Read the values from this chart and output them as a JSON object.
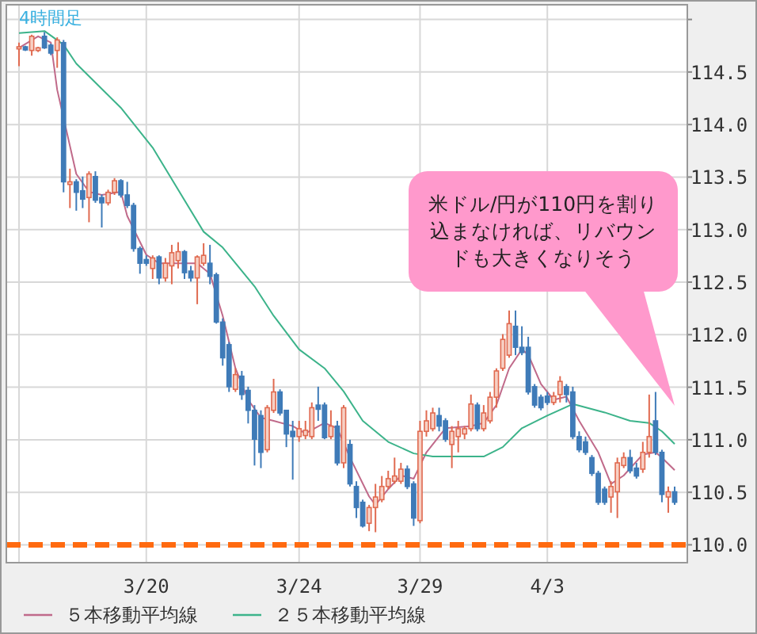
{
  "chart_data": {
    "type": "candlestick",
    "title": "4時間足",
    "annotations": [
      "米ドル/円が110円を割り込まなければ、リバウンドも大きくなりそう"
    ],
    "categories": [
      null,
      null,
      null,
      null,
      null,
      null,
      null,
      null,
      null,
      null,
      null,
      null,
      null,
      null,
      null,
      null,
      null,
      null,
      null,
      null,
      "3/20",
      null,
      null,
      null,
      null,
      null,
      null,
      null,
      null,
      null,
      null,
      null,
      null,
      null,
      null,
      null,
      null,
      null,
      null,
      null,
      null,
      null,
      null,
      null,
      "3/24",
      null,
      null,
      null,
      null,
      null,
      null,
      null,
      null,
      null,
      null,
      null,
      null,
      null,
      null,
      null,
      null,
      null,
      null,
      "3/29",
      null,
      null,
      null,
      null,
      null,
      null,
      null,
      null,
      null,
      null,
      null,
      null,
      null,
      null,
      null,
      null,
      null,
      null,
      null,
      "4/3",
      null,
      null,
      null,
      null,
      null,
      null,
      null,
      null,
      null,
      null,
      null,
      null,
      null,
      null,
      null,
      null,
      null,
      null,
      null,
      null
    ],
    "ohlc": [
      [
        114.72,
        114.78,
        114.555,
        114.74
      ],
      [
        114.74,
        114.75,
        114.7,
        114.71
      ],
      [
        114.705,
        114.855,
        114.655,
        114.84
      ],
      [
        114.705,
        114.74,
        114.69,
        114.73
      ],
      [
        114.84,
        114.88,
        114.72,
        114.73
      ],
      [
        114.755,
        114.77,
        114.66,
        114.68
      ],
      [
        114.705,
        114.83,
        114.54,
        114.805
      ],
      [
        114.78,
        114.805,
        113.355,
        113.455
      ],
      [
        113.43,
        113.58,
        113.205,
        113.455
      ],
      [
        113.455,
        113.48,
        113.18,
        113.355
      ],
      [
        113.37,
        113.505,
        113.205,
        113.29
      ],
      [
        113.305,
        113.555,
        113.07,
        113.53
      ],
      [
        113.505,
        113.555,
        113.255,
        113.28
      ],
      [
        113.305,
        113.335,
        113.02,
        113.255
      ],
      [
        113.255,
        113.38,
        113.23,
        113.355
      ],
      [
        113.355,
        113.49,
        113.33,
        113.465
      ],
      [
        113.465,
        113.48,
        113.305,
        113.33
      ],
      [
        113.33,
        113.455,
        113.205,
        113.23
      ],
      [
        113.23,
        113.255,
        112.79,
        112.82
      ],
      [
        112.82,
        112.84,
        112.58,
        112.68
      ],
      [
        112.715,
        112.755,
        112.655,
        112.68
      ],
      [
        112.63,
        112.755,
        112.53,
        112.73
      ],
      [
        112.74,
        112.755,
        112.48,
        112.54
      ],
      [
        112.54,
        112.73,
        112.505,
        112.68
      ],
      [
        112.655,
        112.855,
        112.48,
        112.78
      ],
      [
        112.705,
        112.88,
        112.63,
        112.79
      ],
      [
        112.79,
        112.805,
        112.53,
        112.59
      ],
      [
        112.605,
        112.655,
        112.505,
        112.54
      ],
      [
        112.54,
        112.755,
        112.29,
        112.74
      ],
      [
        112.68,
        112.87,
        112.655,
        112.755
      ],
      [
        112.68,
        112.855,
        112.48,
        112.555
      ],
      [
        112.57,
        112.59,
        112.105,
        112.12
      ],
      [
        112.12,
        112.155,
        111.705,
        111.78
      ],
      [
        111.905,
        111.93,
        111.455,
        111.505
      ],
      [
        111.48,
        111.68,
        111.455,
        111.62
      ],
      [
        111.605,
        111.655,
        111.38,
        111.43
      ],
      [
        111.47,
        111.505,
        111.155,
        111.28
      ],
      [
        111.28,
        111.33,
        110.755,
        111.005
      ],
      [
        111.23,
        111.28,
        110.73,
        110.88
      ],
      [
        110.905,
        111.33,
        110.88,
        111.305
      ],
      [
        111.28,
        111.58,
        111.255,
        111.455
      ],
      [
        111.455,
        111.48,
        111.23,
        111.255
      ],
      [
        111.28,
        111.28,
        110.93,
        111.055
      ],
      [
        111.08,
        111.18,
        110.62,
        111.03
      ],
      [
        111.03,
        111.18,
        110.98,
        111.105
      ],
      [
        111.04,
        111.18,
        111.005,
        111.09
      ],
      [
        111.03,
        111.355,
        111.005,
        111.305
      ],
      [
        111.33,
        111.505,
        111.18,
        111.29
      ],
      [
        111.33,
        111.355,
        111.005,
        111.02
      ],
      [
        111.03,
        111.28,
        111.005,
        111.13
      ],
      [
        111.13,
        111.18,
        110.755,
        110.78
      ],
      [
        110.78,
        111.33,
        110.73,
        111.305
      ],
      [
        110.955,
        111.0,
        110.555,
        110.58
      ],
      [
        110.555,
        110.605,
        110.255,
        110.355
      ],
      [
        110.405,
        110.43,
        110.165,
        110.18
      ],
      [
        110.205,
        110.38,
        110.13,
        110.355
      ],
      [
        110.355,
        110.58,
        110.12,
        110.455
      ],
      [
        110.43,
        110.655,
        110.405,
        110.555
      ],
      [
        110.555,
        110.705,
        110.53,
        110.63
      ],
      [
        110.605,
        110.83,
        110.58,
        110.655
      ],
      [
        110.605,
        110.78,
        110.58,
        110.72
      ],
      [
        110.72,
        110.755,
        110.53,
        110.555
      ],
      [
        110.58,
        110.605,
        110.18,
        110.255
      ],
      [
        110.23,
        111.18,
        110.205,
        111.08
      ],
      [
        111.08,
        111.28,
        111.03,
        111.18
      ],
      [
        111.105,
        111.305,
        111.08,
        111.255
      ],
      [
        111.23,
        111.305,
        111.08,
        111.13
      ],
      [
        111.18,
        111.205,
        110.98,
        111.005
      ],
      [
        110.955,
        111.13,
        110.73,
        111.08
      ],
      [
        111.03,
        111.18,
        110.88,
        111.105
      ],
      [
        111.055,
        111.13,
        111.005,
        111.105
      ],
      [
        111.105,
        111.43,
        111.08,
        111.34
      ],
      [
        111.33,
        111.355,
        111.08,
        111.105
      ],
      [
        111.105,
        111.33,
        111.08,
        111.255
      ],
      [
        111.18,
        111.455,
        111.155,
        111.405
      ],
      [
        111.405,
        111.68,
        111.305,
        111.655
      ],
      [
        111.68,
        112.005,
        111.655,
        111.955
      ],
      [
        111.805,
        112.23,
        111.78,
        112.105
      ],
      [
        112.08,
        112.23,
        111.805,
        111.88
      ],
      [
        111.88,
        112.08,
        111.805,
        111.83
      ],
      [
        111.88,
        111.98,
        111.43,
        111.455
      ],
      [
        111.505,
        111.53,
        111.305,
        111.33
      ],
      [
        111.405,
        111.43,
        111.28,
        111.305
      ],
      [
        111.415,
        111.455,
        111.33,
        111.355
      ],
      [
        111.355,
        111.455,
        111.33,
        111.415
      ],
      [
        111.43,
        111.605,
        111.355,
        111.555
      ],
      [
        111.505,
        111.53,
        111.355,
        111.43
      ],
      [
        111.455,
        111.505,
        111.005,
        111.03
      ],
      [
        111.03,
        111.08,
        110.88,
        110.905
      ],
      [
        110.98,
        111.03,
        110.855,
        110.88
      ],
      [
        110.83,
        110.855,
        110.655,
        110.68
      ],
      [
        110.68,
        110.705,
        110.38,
        110.405
      ],
      [
        110.53,
        110.555,
        110.38,
        110.405
      ],
      [
        110.455,
        110.605,
        110.305,
        110.555
      ],
      [
        110.505,
        110.83,
        110.255,
        110.78
      ],
      [
        110.755,
        110.88,
        110.73,
        110.83
      ],
      [
        110.83,
        110.905,
        110.68,
        110.705
      ],
      [
        110.73,
        110.78,
        110.63,
        110.655
      ],
      [
        110.72,
        110.98,
        110.685,
        110.88
      ],
      [
        110.88,
        111.43,
        110.83,
        111.03
      ],
      [
        111.18,
        111.455,
        110.855,
        110.88
      ],
      [
        110.88,
        110.905,
        110.405,
        110.48
      ],
      [
        110.455,
        110.555,
        110.305,
        110.505
      ],
      [
        110.505,
        110.555,
        110.38,
        110.405
      ]
    ],
    "series": [
      {
        "type": "line",
        "name": "５本移動平均線",
        "color": "#c06a8a",
        "values": [
          114.73,
          null,
          null,
          114.84,
          null,
          114.78,
          114.33,
          null,
          null,
          113.53,
          null,
          113.36,
          null,
          113.33,
          null,
          null,
          113.36,
          113.13,
          null,
          null,
          112.76,
          null,
          112.68,
          null,
          null,
          112.68,
          null,
          null,
          112.68,
          null,
          112.58,
          null,
          112.18,
          null,
          111.68,
          null,
          111.38,
          null,
          111.21,
          null,
          111.18,
          null,
          null,
          111.13,
          null,
          111.06,
          null,
          null,
          111.16,
          null,
          111.11,
          null,
          110.83,
          null,
          null,
          110.46,
          110.38,
          null,
          110.53,
          null,
          110.66,
          null,
          110.63,
          null,
          110.88,
          null,
          null,
          111.11,
          null,
          null,
          null,
          111.13,
          null,
          111.16,
          null,
          111.33,
          null,
          111.68,
          null,
          111.86,
          111.81,
          null,
          111.53,
          null,
          111.38,
          null,
          111.41,
          null,
          111.18,
          null,
          null,
          110.88,
          null,
          110.58,
          null,
          110.66,
          null,
          null,
          110.86,
          null,
          110.88,
          110.83,
          null,
          110.71
        ]
      },
      {
        "type": "line",
        "name": "２５本移動平均線",
        "color": "#3cb38a",
        "values": [
          114.87,
          null,
          null,
          null,
          114.89,
          null,
          null,
          114.76,
          null,
          114.58,
          null,
          null,
          null,
          null,
          null,
          null,
          114.16,
          null,
          null,
          null,
          null,
          113.78,
          null,
          null,
          null,
          null,
          null,
          null,
          null,
          112.98,
          null,
          null,
          112.83,
          null,
          null,
          null,
          null,
          112.46,
          null,
          null,
          112.18,
          null,
          null,
          null,
          111.86,
          null,
          null,
          null,
          111.68,
          null,
          null,
          111.46,
          null,
          null,
          111.18,
          null,
          null,
          null,
          110.98,
          null,
          null,
          null,
          110.87,
          null,
          null,
          110.84,
          null,
          null,
          null,
          null,
          null,
          110.84,
          null,
          110.84,
          null,
          null,
          110.93,
          null,
          null,
          111.11,
          null,
          null,
          null,
          111.23,
          null,
          null,
          null,
          111.34,
          null,
          null,
          null,
          null,
          111.26,
          null,
          null,
          null,
          111.18,
          null,
          null,
          111.16,
          null,
          111.08,
          null,
          110.96
        ]
      }
    ],
    "ylim": [
      109.83,
      115.14
    ],
    "yticks": [
      {
        "value": 110,
        "label": "110.0"
      },
      {
        "value": 110.5,
        "label": "110.5"
      },
      {
        "value": 111,
        "label": "111.0"
      },
      {
        "value": 111.5,
        "label": "111.5"
      },
      {
        "value": 112,
        "label": "112.0"
      },
      {
        "value": 112.5,
        "label": "112.5"
      },
      {
        "value": 113,
        "label": "113.0"
      },
      {
        "value": 113.5,
        "label": "113.5"
      },
      {
        "value": 114,
        "label": "114.0"
      },
      {
        "value": 114.5,
        "label": "114.5"
      },
      {
        "value": 115,
        "label": null
      }
    ],
    "ref_lines": [
      {
        "axis": "y",
        "value": 110,
        "color": "#ff6a10",
        "line_style": "dashed"
      }
    ],
    "grid": true,
    "legend": "bottom"
  }
}
